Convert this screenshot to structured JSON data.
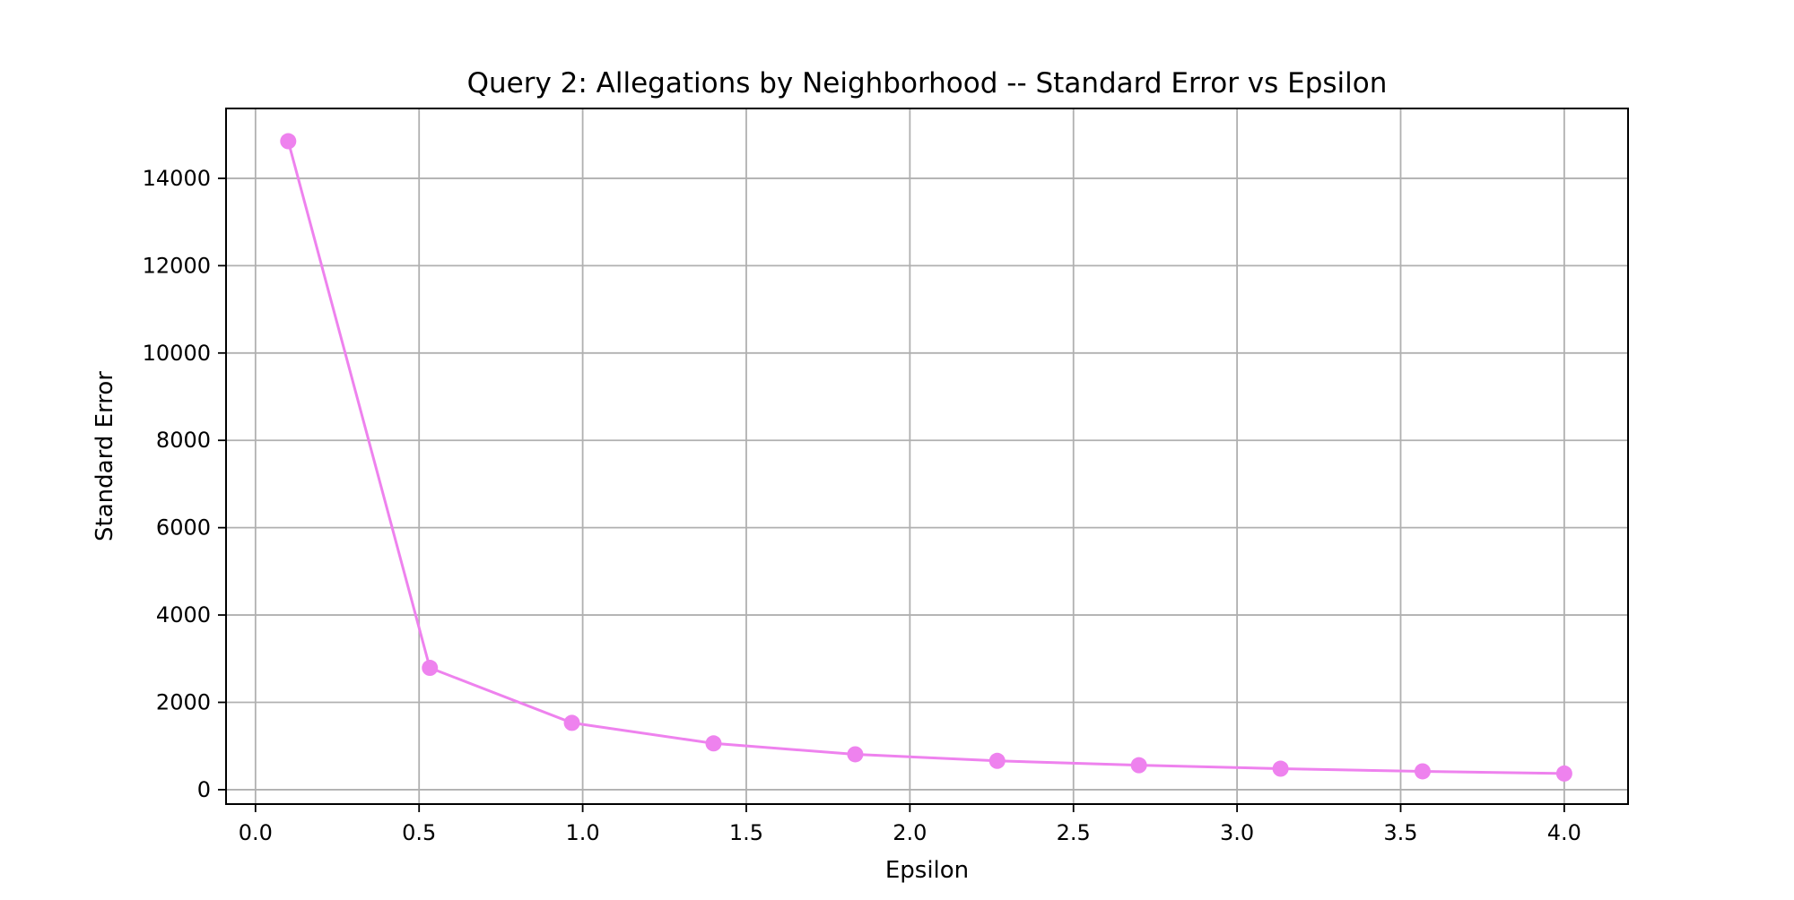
{
  "chart_data": {
    "type": "line",
    "title": "Query 2: Allegations by Neighborhood -- Standard Error vs Epsilon",
    "xlabel": "Epsilon",
    "ylabel": "Standard Error",
    "xlim": [
      -0.09,
      4.195
    ],
    "ylim": [
      -330,
      15600
    ],
    "xticks": [
      0.0,
      0.5,
      1.0,
      1.5,
      2.0,
      2.5,
      3.0,
      3.5,
      4.0
    ],
    "xtick_labels": [
      "0.0",
      "0.5",
      "1.0",
      "1.5",
      "2.0",
      "2.5",
      "3.0",
      "3.5",
      "4.0"
    ],
    "yticks": [
      0,
      2000,
      4000,
      6000,
      8000,
      10000,
      12000,
      14000
    ],
    "ytick_labels": [
      "0",
      "2000",
      "4000",
      "6000",
      "8000",
      "10000",
      "12000",
      "14000"
    ],
    "grid": true,
    "legend": "none",
    "series": [
      {
        "color": "#ee82ee",
        "marker": "circle",
        "x": [
          0.1,
          0.533,
          0.967,
          1.4,
          1.833,
          2.267,
          2.7,
          3.133,
          3.567,
          4.0
        ],
        "y": [
          14850,
          2790,
          1530,
          1060,
          810,
          660,
          560,
          480,
          420,
          370
        ]
      }
    ]
  }
}
